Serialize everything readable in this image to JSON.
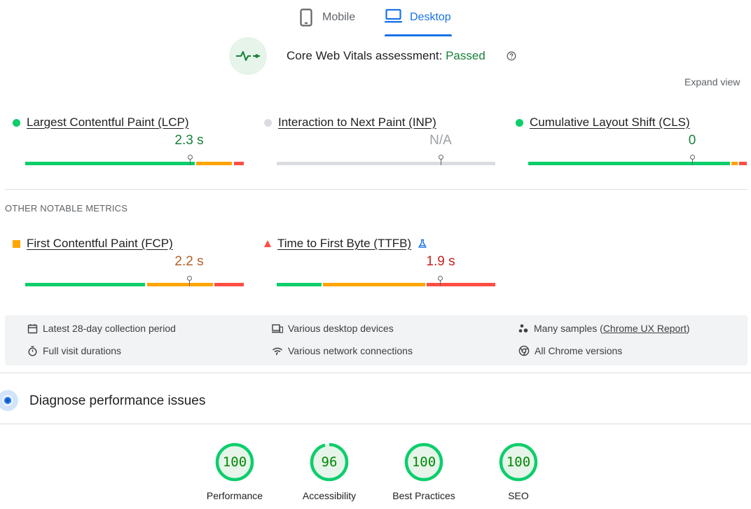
{
  "tabs": {
    "mobile_label": "Mobile",
    "desktop_label": "Desktop",
    "active": "Desktop"
  },
  "cwv": {
    "title_prefix": "Core Web Vitals assessment: ",
    "status": "Passed",
    "expand_view": "Expand view"
  },
  "core_metrics": [
    {
      "name": "Largest Contentful Paint (LCP)",
      "value": "2.3 s",
      "rating": "good",
      "marker_fraction": 0.75
    },
    {
      "name": "Interaction to Next Paint (INP)",
      "value": "N/A",
      "rating": "none",
      "marker_fraction": 0.75
    },
    {
      "name": "Cumulative Layout Shift (CLS)",
      "value": "0",
      "rating": "good",
      "marker_fraction": 0.75
    }
  ],
  "other_label": "OTHER NOTABLE METRICS",
  "other_metrics": [
    {
      "name": "First Contentful Paint (FCP)",
      "value": "2.2 s",
      "rating": "needs-improvement",
      "marker_fraction": 0.75
    },
    {
      "name": "Time to First Byte (TTFB)",
      "value": "1.9 s",
      "rating": "poor",
      "marker_fraction": 0.75
    }
  ],
  "info": {
    "collection_period": "Latest 28-day collection period",
    "visit_durations": "Full visit durations",
    "devices": "Various desktop devices",
    "network": "Various network connections",
    "samples_prefix": "Many samples (",
    "samples_link": "Chrome UX Report",
    "samples_suffix": ")",
    "chrome_versions": "All Chrome versions"
  },
  "diagnose": {
    "title": "Diagnose performance issues"
  },
  "scores": [
    {
      "label": "Performance",
      "value": "100",
      "fraction": 1.0
    },
    {
      "label": "Accessibility",
      "value": "96",
      "fraction": 0.96
    },
    {
      "label": "Best Practices",
      "value": "100",
      "fraction": 1.0
    },
    {
      "label": "SEO",
      "value": "100",
      "fraction": 1.0
    }
  ],
  "colors": {
    "good": "#0cce6b",
    "needs_improvement": "#ffa400",
    "poor": "#ff4e42",
    "accent": "#1a73e8",
    "passed": "#188038"
  }
}
